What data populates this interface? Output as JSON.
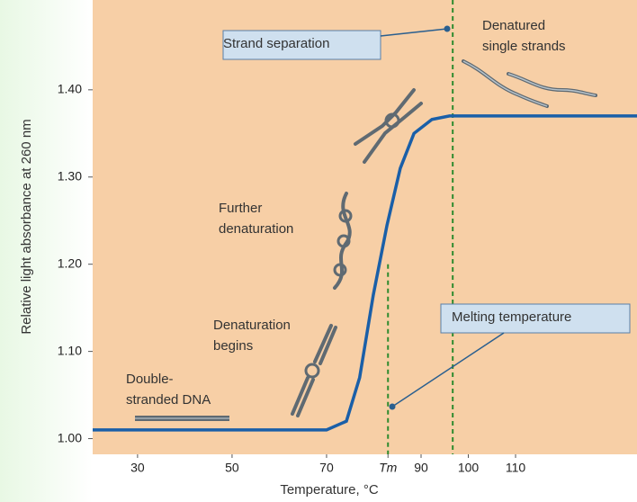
{
  "chart_data": {
    "type": "line",
    "xlabel": "Temperature, °C",
    "ylabel": "Relative light absorbance at 260 nm",
    "xlim": [
      20.5,
      135.7
    ],
    "ylim": [
      0.982,
      1.503
    ],
    "xticks": [
      30,
      50,
      70,
      {
        "value": 83,
        "label": "Tm"
      },
      90,
      100,
      110
    ],
    "yticks": [
      {
        "value": 1.0,
        "label": "1.00"
      },
      {
        "value": 1.1,
        "label": "1.10"
      },
      {
        "value": 1.2,
        "label": "1.20"
      },
      {
        "value": 1.3,
        "label": "1.30"
      },
      {
        "value": 1.4,
        "label": "1.40"
      }
    ],
    "vlines": [
      83,
      96.7
    ],
    "series": [
      {
        "color": "#1a5fa8",
        "x": [
          20.5,
          70,
          74.2,
          77,
          79.9,
          82.8,
          85.6,
          88.5,
          92.3,
          96,
          135.7
        ],
        "values": [
          1.01,
          1.01,
          1.02,
          1.07,
          1.165,
          1.245,
          1.31,
          1.35,
          1.366,
          1.37,
          1.37
        ]
      }
    ],
    "annotations": [
      {
        "text": [
          "Strand separation"
        ]
      },
      {
        "text": [
          "Denatured",
          "single strands"
        ]
      },
      {
        "text": [
          "Further",
          "denaturation"
        ]
      },
      {
        "text": [
          "Denaturation",
          "begins"
        ]
      },
      {
        "text": [
          "Double-",
          "stranded DNA"
        ]
      },
      {
        "text": [
          "Melting temperature"
        ]
      }
    ]
  }
}
